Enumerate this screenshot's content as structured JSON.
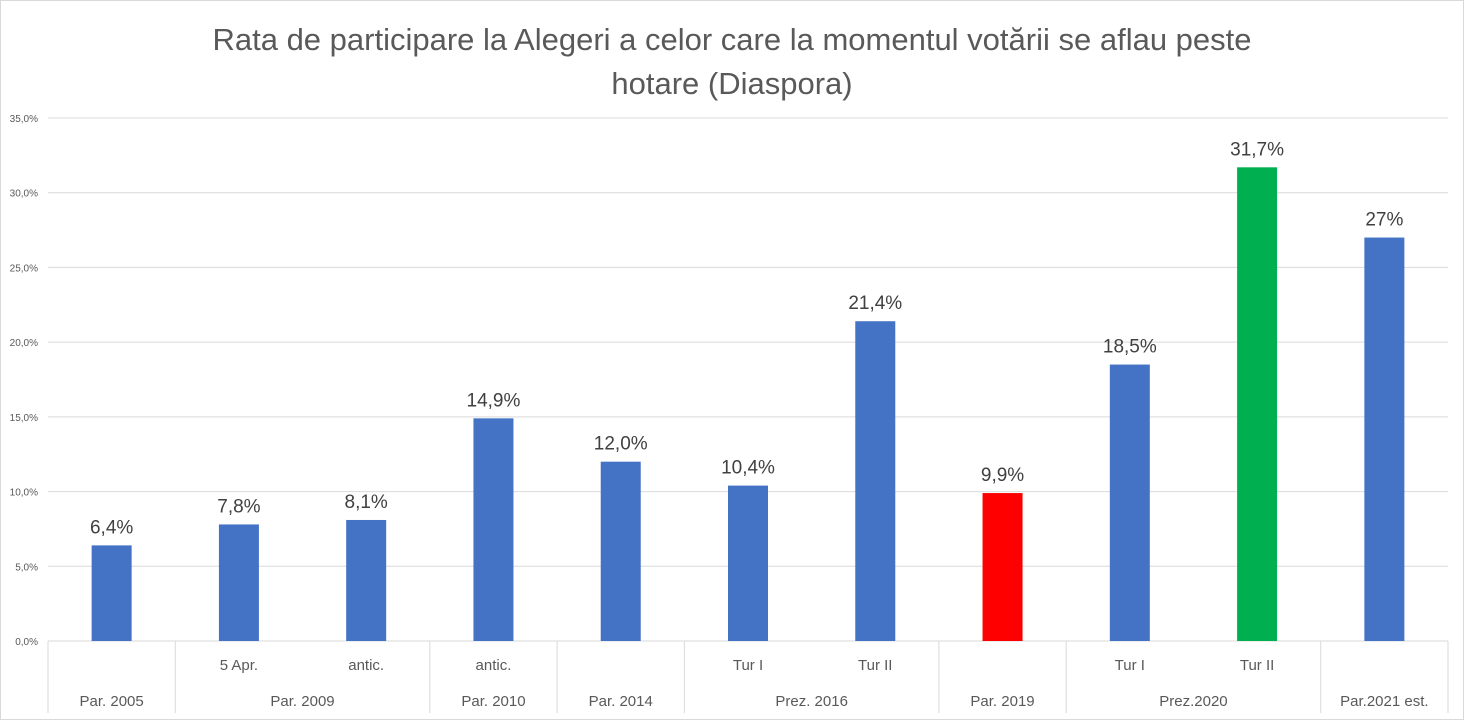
{
  "chart_data": {
    "type": "bar",
    "title_line1": "Rata de participare la Alegeri a celor care la momentul votării se aflau peste",
    "title_line2": "hotare (Diaspora)",
    "ylim": [
      0,
      35
    ],
    "yticks": [
      "0,0%",
      "5,0%",
      "10,0%",
      "15,0%",
      "20,0%",
      "25,0%",
      "30,0%",
      "35,0%"
    ],
    "grid": true,
    "bars": [
      {
        "group": "Par. 2005",
        "sub": "",
        "value": 6.4,
        "label": "6,4%",
        "color": "#4472C4"
      },
      {
        "group": "Par. 2009",
        "sub": "5 Apr.",
        "value": 7.8,
        "label": "7,8%",
        "color": "#4472C4"
      },
      {
        "group": "Par. 2009",
        "sub": "antic.",
        "value": 8.1,
        "label": "8,1%",
        "color": "#4472C4"
      },
      {
        "group": "Par. 2010",
        "sub": "antic.",
        "value": 14.9,
        "label": "14,9%",
        "color": "#4472C4"
      },
      {
        "group": "Par. 2014",
        "sub": "",
        "value": 12.0,
        "label": "12,0%",
        "color": "#4472C4"
      },
      {
        "group": "Prez. 2016",
        "sub": "Tur I",
        "value": 10.4,
        "label": "10,4%",
        "color": "#4472C4"
      },
      {
        "group": "Prez. 2016",
        "sub": "Tur II",
        "value": 21.4,
        "label": "21,4%",
        "color": "#4472C4"
      },
      {
        "group": "Par. 2019",
        "sub": "",
        "value": 9.9,
        "label": "9,9%",
        "color": "#FF0000"
      },
      {
        "group": "Prez.2020",
        "sub": "Tur I",
        "value": 18.5,
        "label": "18,5%",
        "color": "#4472C4"
      },
      {
        "group": "Prez.2020",
        "sub": "Tur II",
        "value": 31.7,
        "label": "31,7%",
        "color": "#00B050"
      },
      {
        "group": "Par.2021 est.",
        "sub": "",
        "value": 27,
        "label": "27%",
        "color": "#4472C4"
      }
    ]
  }
}
